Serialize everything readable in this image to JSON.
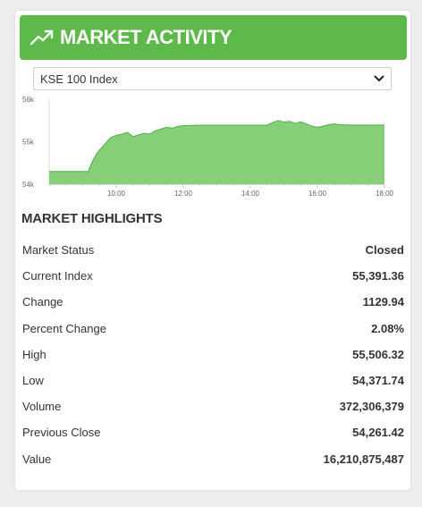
{
  "colors": {
    "accent": "#5cb94a",
    "chart_fill": "#86cf78",
    "chart_line": "#52b044"
  },
  "header": {
    "icon": "trending-up-icon",
    "title": "MARKET ACTIVITY"
  },
  "index_select": {
    "selected": "KSE 100 Index"
  },
  "chart_data": {
    "type": "area",
    "y_ticks": [
      "56k",
      "55k",
      "54k"
    ],
    "x_ticks": [
      "10:00",
      "12:00",
      "14:00",
      "16:00",
      "18:00"
    ],
    "ylim": [
      54000,
      56000
    ],
    "xlim": [
      "08:00",
      "18:00"
    ],
    "grid": false,
    "x": [
      "08:00",
      "09:10",
      "09:12",
      "09:18",
      "09:22",
      "09:25",
      "09:30",
      "09:40",
      "09:50",
      "10:00",
      "10:10",
      "10:20",
      "10:30",
      "10:40",
      "10:50",
      "11:00",
      "11:10",
      "11:20",
      "11:30",
      "11:40",
      "11:50",
      "12:00",
      "12:30",
      "13:00",
      "13:30",
      "14:00",
      "14:30",
      "14:40",
      "14:50",
      "15:00",
      "15:10",
      "15:20",
      "15:30",
      "15:40",
      "15:50",
      "16:00",
      "16:10",
      "16:20",
      "16:30",
      "16:40",
      "17:00",
      "17:30",
      "18:00"
    ],
    "y": [
      54300,
      54300,
      54380,
      54550,
      54650,
      54720,
      54800,
      54950,
      55100,
      55150,
      55180,
      55220,
      55120,
      55160,
      55200,
      55180,
      55260,
      55300,
      55340,
      55320,
      55360,
      55380,
      55390,
      55390,
      55390,
      55390,
      55390,
      55450,
      55500,
      55460,
      55480,
      55430,
      55470,
      55420,
      55370,
      55340,
      55370,
      55400,
      55420,
      55400,
      55391,
      55391,
      55391
    ]
  },
  "highlights": {
    "title": "MARKET HIGHLIGHTS",
    "rows": [
      {
        "label": "Market Status",
        "value": "Closed"
      },
      {
        "label": "Current Index",
        "value": "55,391.36"
      },
      {
        "label": "Change",
        "value": "1129.94"
      },
      {
        "label": "Percent Change",
        "value": "2.08%"
      },
      {
        "label": "High",
        "value": "55,506.32"
      },
      {
        "label": "Low",
        "value": "54,371.74"
      },
      {
        "label": "Volume",
        "value": "372,306,379"
      },
      {
        "label": "Previous Close",
        "value": "54,261.42"
      },
      {
        "label": "Value",
        "value": "16,210,875,487"
      }
    ]
  }
}
